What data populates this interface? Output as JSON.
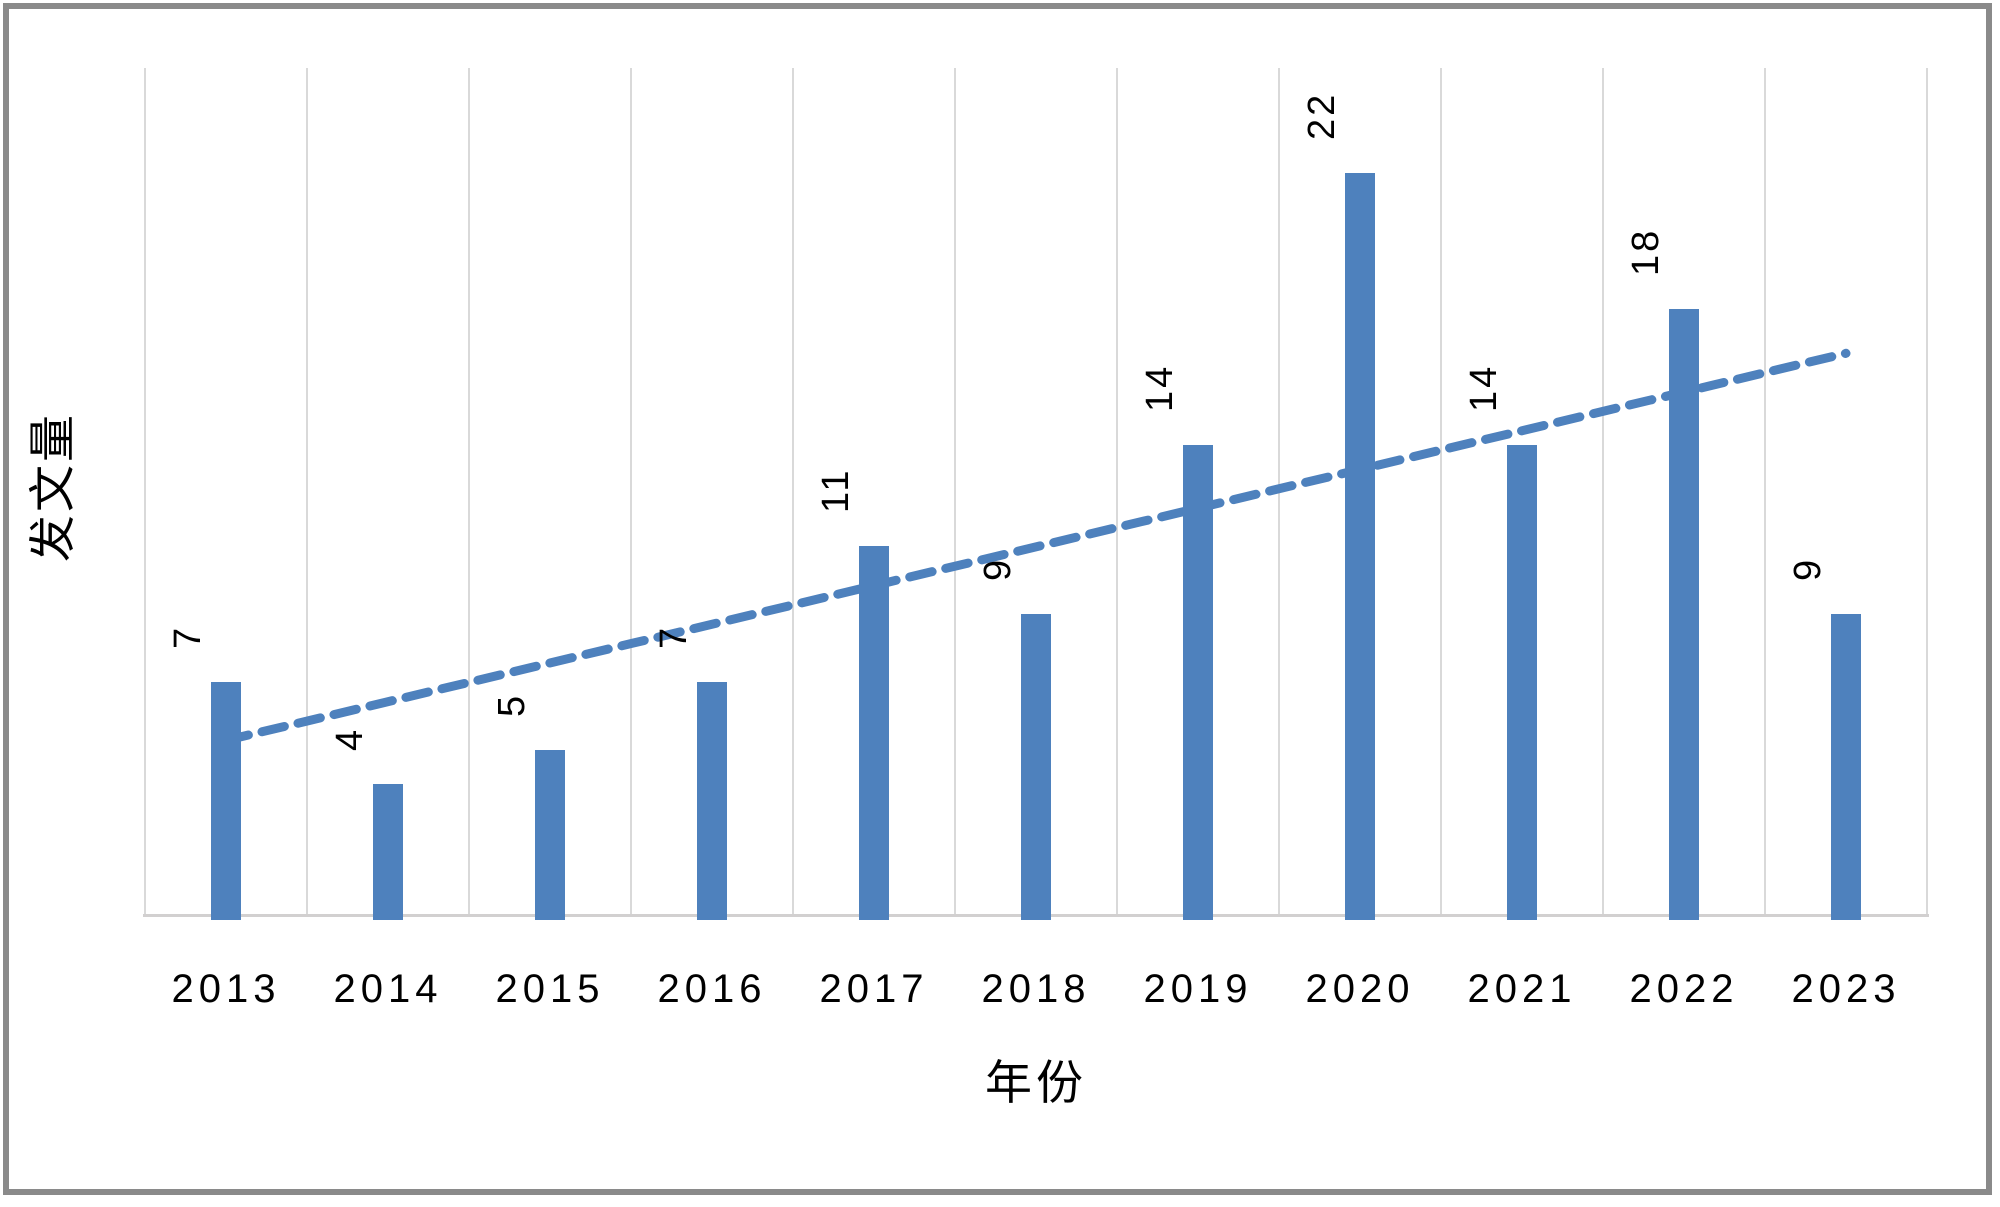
{
  "chart_data": {
    "type": "bar",
    "title": "",
    "categories": [
      "2013",
      "2014",
      "2015",
      "2016",
      "2017",
      "2018",
      "2019",
      "2020",
      "2021",
      "2022",
      "2023"
    ],
    "values": [
      7,
      4,
      5,
      7,
      11,
      9,
      14,
      22,
      14,
      18,
      9
    ],
    "data_labels": [
      "7",
      "4",
      "5",
      "7",
      "11",
      "9",
      "14",
      "22",
      "14",
      "18",
      "9"
    ],
    "xlabel": "年份",
    "ylabel": "发文量",
    "ylim": [
      0,
      25
    ],
    "y_axis_ticks": "none",
    "grid": "vertical lines at category boundaries",
    "legend": "none",
    "data_label_rotation_deg": -90,
    "trendline": {
      "type": "linear",
      "style": "dashed",
      "start_category": "2013",
      "end_category": "2023",
      "start_value": 5.2,
      "end_value": 16.6
    }
  },
  "colors": {
    "bar": "#4E81BD",
    "trendline": "#4E81BD",
    "gridline": "#D9D9D9",
    "axis_line": "#D2D0D0",
    "frame_border": "#8A8A8A",
    "text": "#000000",
    "background": "#FFFFFF"
  }
}
